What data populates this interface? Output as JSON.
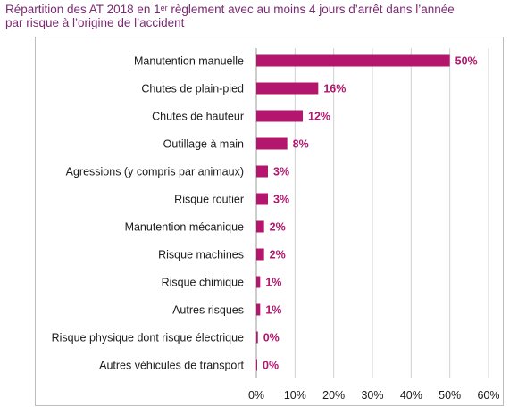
{
  "title": {
    "line1_prefix": "Répartition des AT 2018 en 1",
    "line1_sup": "er",
    "line1_suffix": " règlement avec au moins 4 jours d’arrêt dans l’année",
    "line2": "par risque à l’origine de l’accident"
  },
  "colors": {
    "title": "#7a2a72",
    "bar": "#b4166e",
    "value_label": "#b4166e",
    "grid": "#d0d0d0"
  },
  "chart_data": {
    "type": "bar",
    "orientation": "horizontal",
    "categories": [
      "Manutention manuelle",
      "Chutes de plain-pied",
      "Chutes de hauteur",
      "Outillage à main",
      "Agressions (y compris par animaux)",
      "Risque routier",
      "Manutention mécanique",
      "Risque machines",
      "Risque chimique",
      "Autres risques",
      "Risque physique dont risque électrique",
      "Autres véhicules de transport"
    ],
    "values": [
      50,
      16,
      12,
      8,
      3,
      3,
      2,
      2,
      1,
      1,
      0.4,
      0.2
    ],
    "value_labels": [
      "50%",
      "16%",
      "12%",
      "8%",
      "3%",
      "3%",
      "2%",
      "2%",
      "1%",
      "1%",
      "0%",
      "0%"
    ],
    "xlim": [
      0,
      60
    ],
    "xticks": [
      0,
      10,
      20,
      30,
      40,
      50,
      60
    ],
    "xtick_labels": [
      "0%",
      "10%",
      "20%",
      "30%",
      "40%",
      "50%",
      "60%"
    ],
    "grid": "vertical",
    "legend": "none"
  }
}
